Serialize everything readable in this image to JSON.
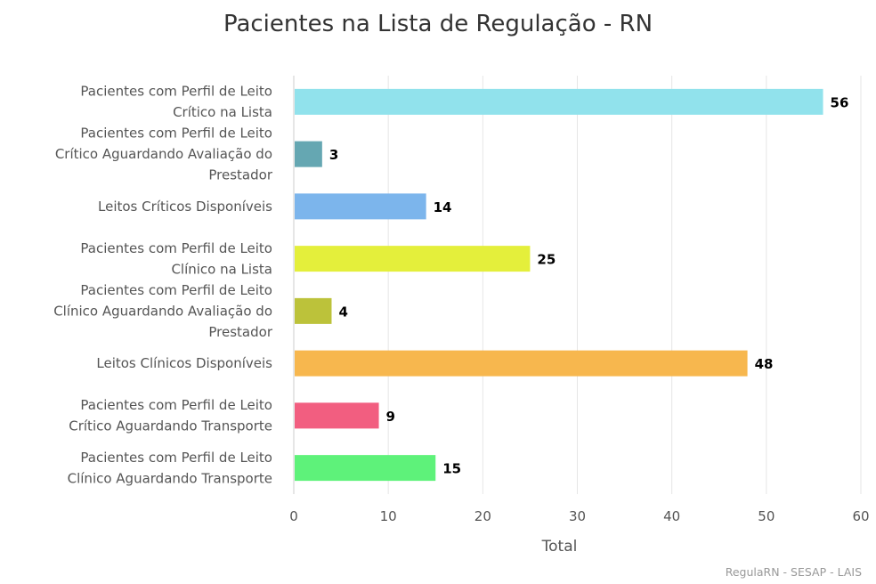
{
  "chart_data": {
    "type": "bar",
    "orientation": "horizontal",
    "title": "Pacientes na Lista de Regulação - RN",
    "xlabel": "Total",
    "ylabel": "",
    "xlim": [
      0,
      60
    ],
    "ticks": [
      "0",
      "10",
      "20",
      "30",
      "40",
      "50",
      "60"
    ],
    "grid": true,
    "categories": [
      [
        "Pacientes com Perfil de Leito",
        "Crítico na Lista"
      ],
      [
        "Pacientes com Perfil de Leito",
        "Crítico Aguardando Avaliação do",
        "Prestador"
      ],
      [
        "Leitos Críticos Disponíveis"
      ],
      [
        "Pacientes com Perfil de Leito",
        "Clínico na Lista"
      ],
      [
        "Pacientes com Perfil de Leito",
        "Clínico Aguardando Avaliação do",
        "Prestador"
      ],
      [
        "Leitos Clínicos Disponíveis"
      ],
      [
        "Pacientes com Perfil de Leito",
        "Crítico Aguardando Transporte"
      ],
      [
        "Pacientes com Perfil de Leito",
        "Clínico Aguardando Transporte"
      ]
    ],
    "values": [
      56,
      3,
      14,
      25,
      4,
      48,
      9,
      15
    ],
    "colors": [
      "#91e2ec",
      "#65a7b2",
      "#7cb5ec",
      "#e4ef3b",
      "#bcc23a",
      "#f7b74e",
      "#f25e80",
      "#5ef27a"
    ],
    "credit": "RegulaRN - SESAP - LAIS"
  }
}
